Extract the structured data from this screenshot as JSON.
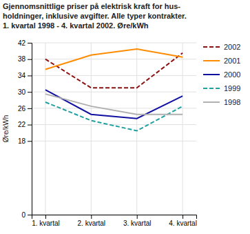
{
  "chart_data": {
    "type": "line",
    "title": "Gjennomsnittlige priser på elektrisk kraft for hus-\nholdninger, inklusive avgifter. Alle typer kontrakter.\n1. kvartal 1998 - 4. kvartal 2002. Øre/kWh",
    "y_label": "Øre/kWh",
    "categories": [
      "1. kvartal",
      "2. kvartal",
      "3. kvartal",
      "4. kvartal"
    ],
    "series": [
      {
        "name": "2002",
        "color": "#8B1010",
        "line_style": "dashed",
        "values": [
          38.0,
          31.0,
          31.0,
          39.5
        ]
      },
      {
        "name": "2001",
        "color": "#FF8C00",
        "line_style": "solid",
        "values": [
          35.5,
          39.0,
          40.5,
          38.5
        ]
      },
      {
        "name": "2000",
        "color": "#1010A0",
        "line_style": "solid",
        "values": [
          30.5,
          24.5,
          23.5,
          29.0
        ]
      },
      {
        "name": "1999",
        "color": "#20A0A0",
        "line_style": "dashed",
        "values": [
          27.5,
          23.0,
          20.5,
          26.5
        ]
      },
      {
        "name": "1998",
        "color": "#B0B0B0",
        "line_style": "solid",
        "values": [
          29.5,
          26.5,
          24.5,
          24.5
        ]
      }
    ],
    "ylim": [
      0,
      42
    ],
    "yticks": [
      0,
      18,
      22,
      26,
      30,
      34,
      38,
      42
    ],
    "grid": true,
    "legend": "right"
  }
}
